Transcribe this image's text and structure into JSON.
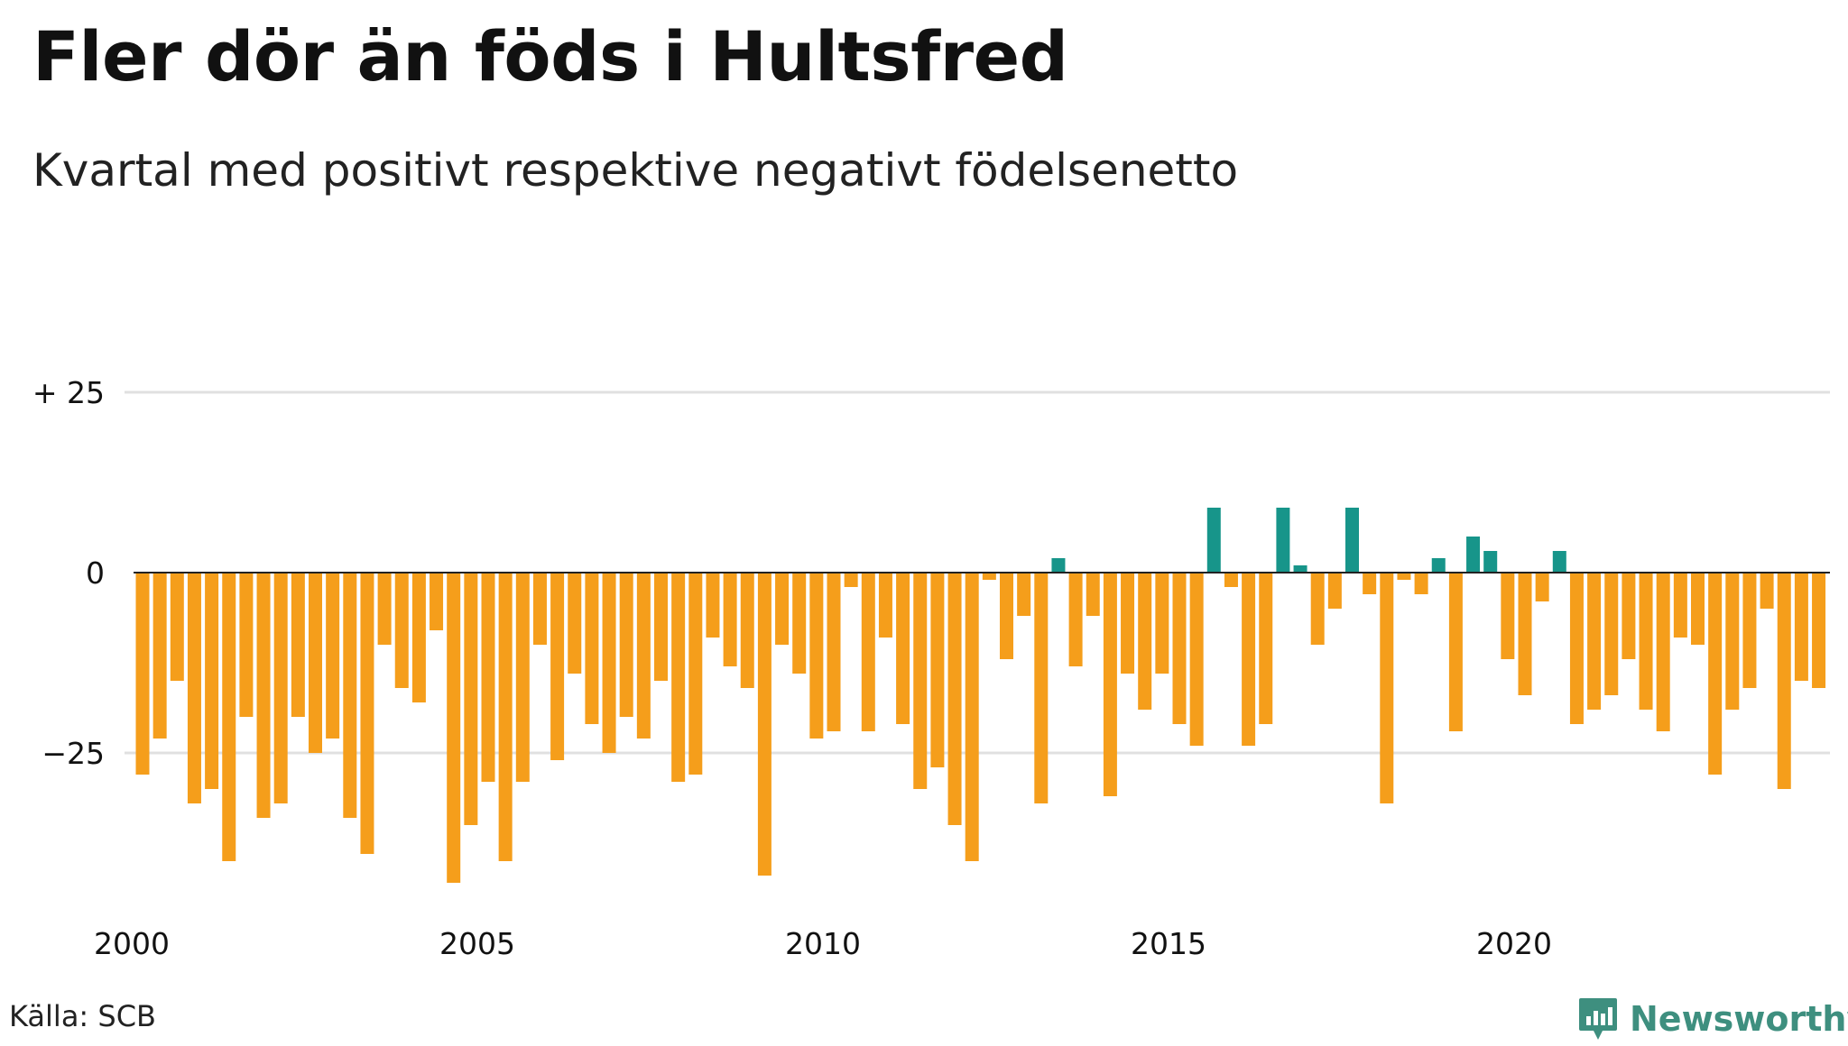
{
  "header": {
    "title": "Fler dör än föds i Hultsfred",
    "subtitle": "Kvartal med positivt respektive negativt födelsenetto"
  },
  "footer": {
    "source": "Källa: SCB",
    "brand": "Newsworthy"
  },
  "colors": {
    "positive": "#17958a",
    "negative": "#f59e1b",
    "grid": "#e0e0e0",
    "zero_line": "#222222",
    "brand": "#3e8f7f"
  },
  "icons": {
    "brand_logo": "newsworthy-logo-icon"
  },
  "chart_data": {
    "type": "bar",
    "title": "Fler dör än föds i Hultsfred",
    "subtitle": "Kvartal med positivt respektive negativt födelsenetto",
    "xlabel": "",
    "ylabel": "",
    "ylim": [
      -45,
      25
    ],
    "y_ticks": [
      {
        "value": 25,
        "label": "+ 25"
      },
      {
        "value": 0,
        "label": "0"
      },
      {
        "value": -25,
        "label": "−25"
      }
    ],
    "x_ticks": [
      "2000",
      "2005",
      "2010",
      "2015",
      "2020"
    ],
    "grid": true,
    "legend": "none",
    "start_period": "2000 Q1",
    "frequency": "quarterly",
    "values": [
      -28,
      -23,
      -15,
      -32,
      -30,
      -40,
      -20,
      -34,
      -32,
      -20,
      -25,
      -23,
      -34,
      -39,
      -10,
      -16,
      -18,
      -8,
      -43,
      -35,
      -29,
      -40,
      -29,
      -10,
      -26,
      -14,
      -21,
      -25,
      -20,
      -23,
      -15,
      -29,
      -28,
      -9,
      -13,
      -16,
      -42,
      -10,
      -14,
      -23,
      -22,
      -2,
      -22,
      -9,
      -21,
      -30,
      -27,
      -35,
      -40,
      -1,
      -12,
      -6,
      -32,
      2,
      -13,
      -6,
      -31,
      -14,
      -19,
      -14,
      -21,
      -24,
      9,
      -2,
      -24,
      -21,
      9,
      1,
      -10,
      -5,
      9,
      -3,
      -32,
      -1,
      -3,
      2,
      -22,
      5,
      3,
      -12,
      -17,
      -4,
      3,
      -21,
      -19,
      -17,
      -12,
      -19,
      -22,
      -9,
      -10,
      -28,
      -19,
      -16,
      -5,
      -30,
      -15,
      -16
    ]
  }
}
